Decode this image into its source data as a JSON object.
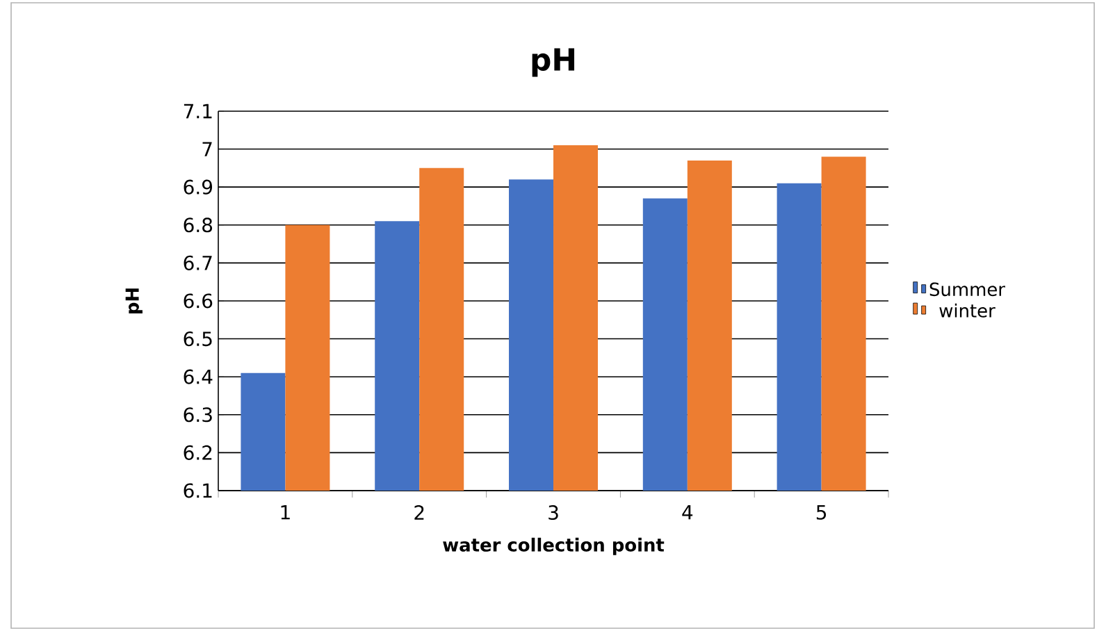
{
  "chart_data": {
    "type": "bar",
    "title": "pH",
    "xlabel": "water collection point",
    "ylabel": "pH",
    "categories": [
      "1",
      "2",
      "3",
      "4",
      "5"
    ],
    "series": [
      {
        "name": "Summer",
        "color": "#4472c4",
        "values": [
          6.41,
          6.81,
          6.92,
          6.87,
          6.91
        ]
      },
      {
        "name": "winter",
        "color": "#ed7d31",
        "values": [
          6.8,
          6.95,
          7.01,
          6.97,
          6.98
        ]
      }
    ],
    "ylim": [
      6.1,
      7.1
    ],
    "yticks": [
      6.1,
      6.2,
      6.3,
      6.4,
      6.5,
      6.6,
      6.7,
      6.8,
      6.9,
      7,
      7.1
    ],
    "grid": "y",
    "legend": "right"
  }
}
